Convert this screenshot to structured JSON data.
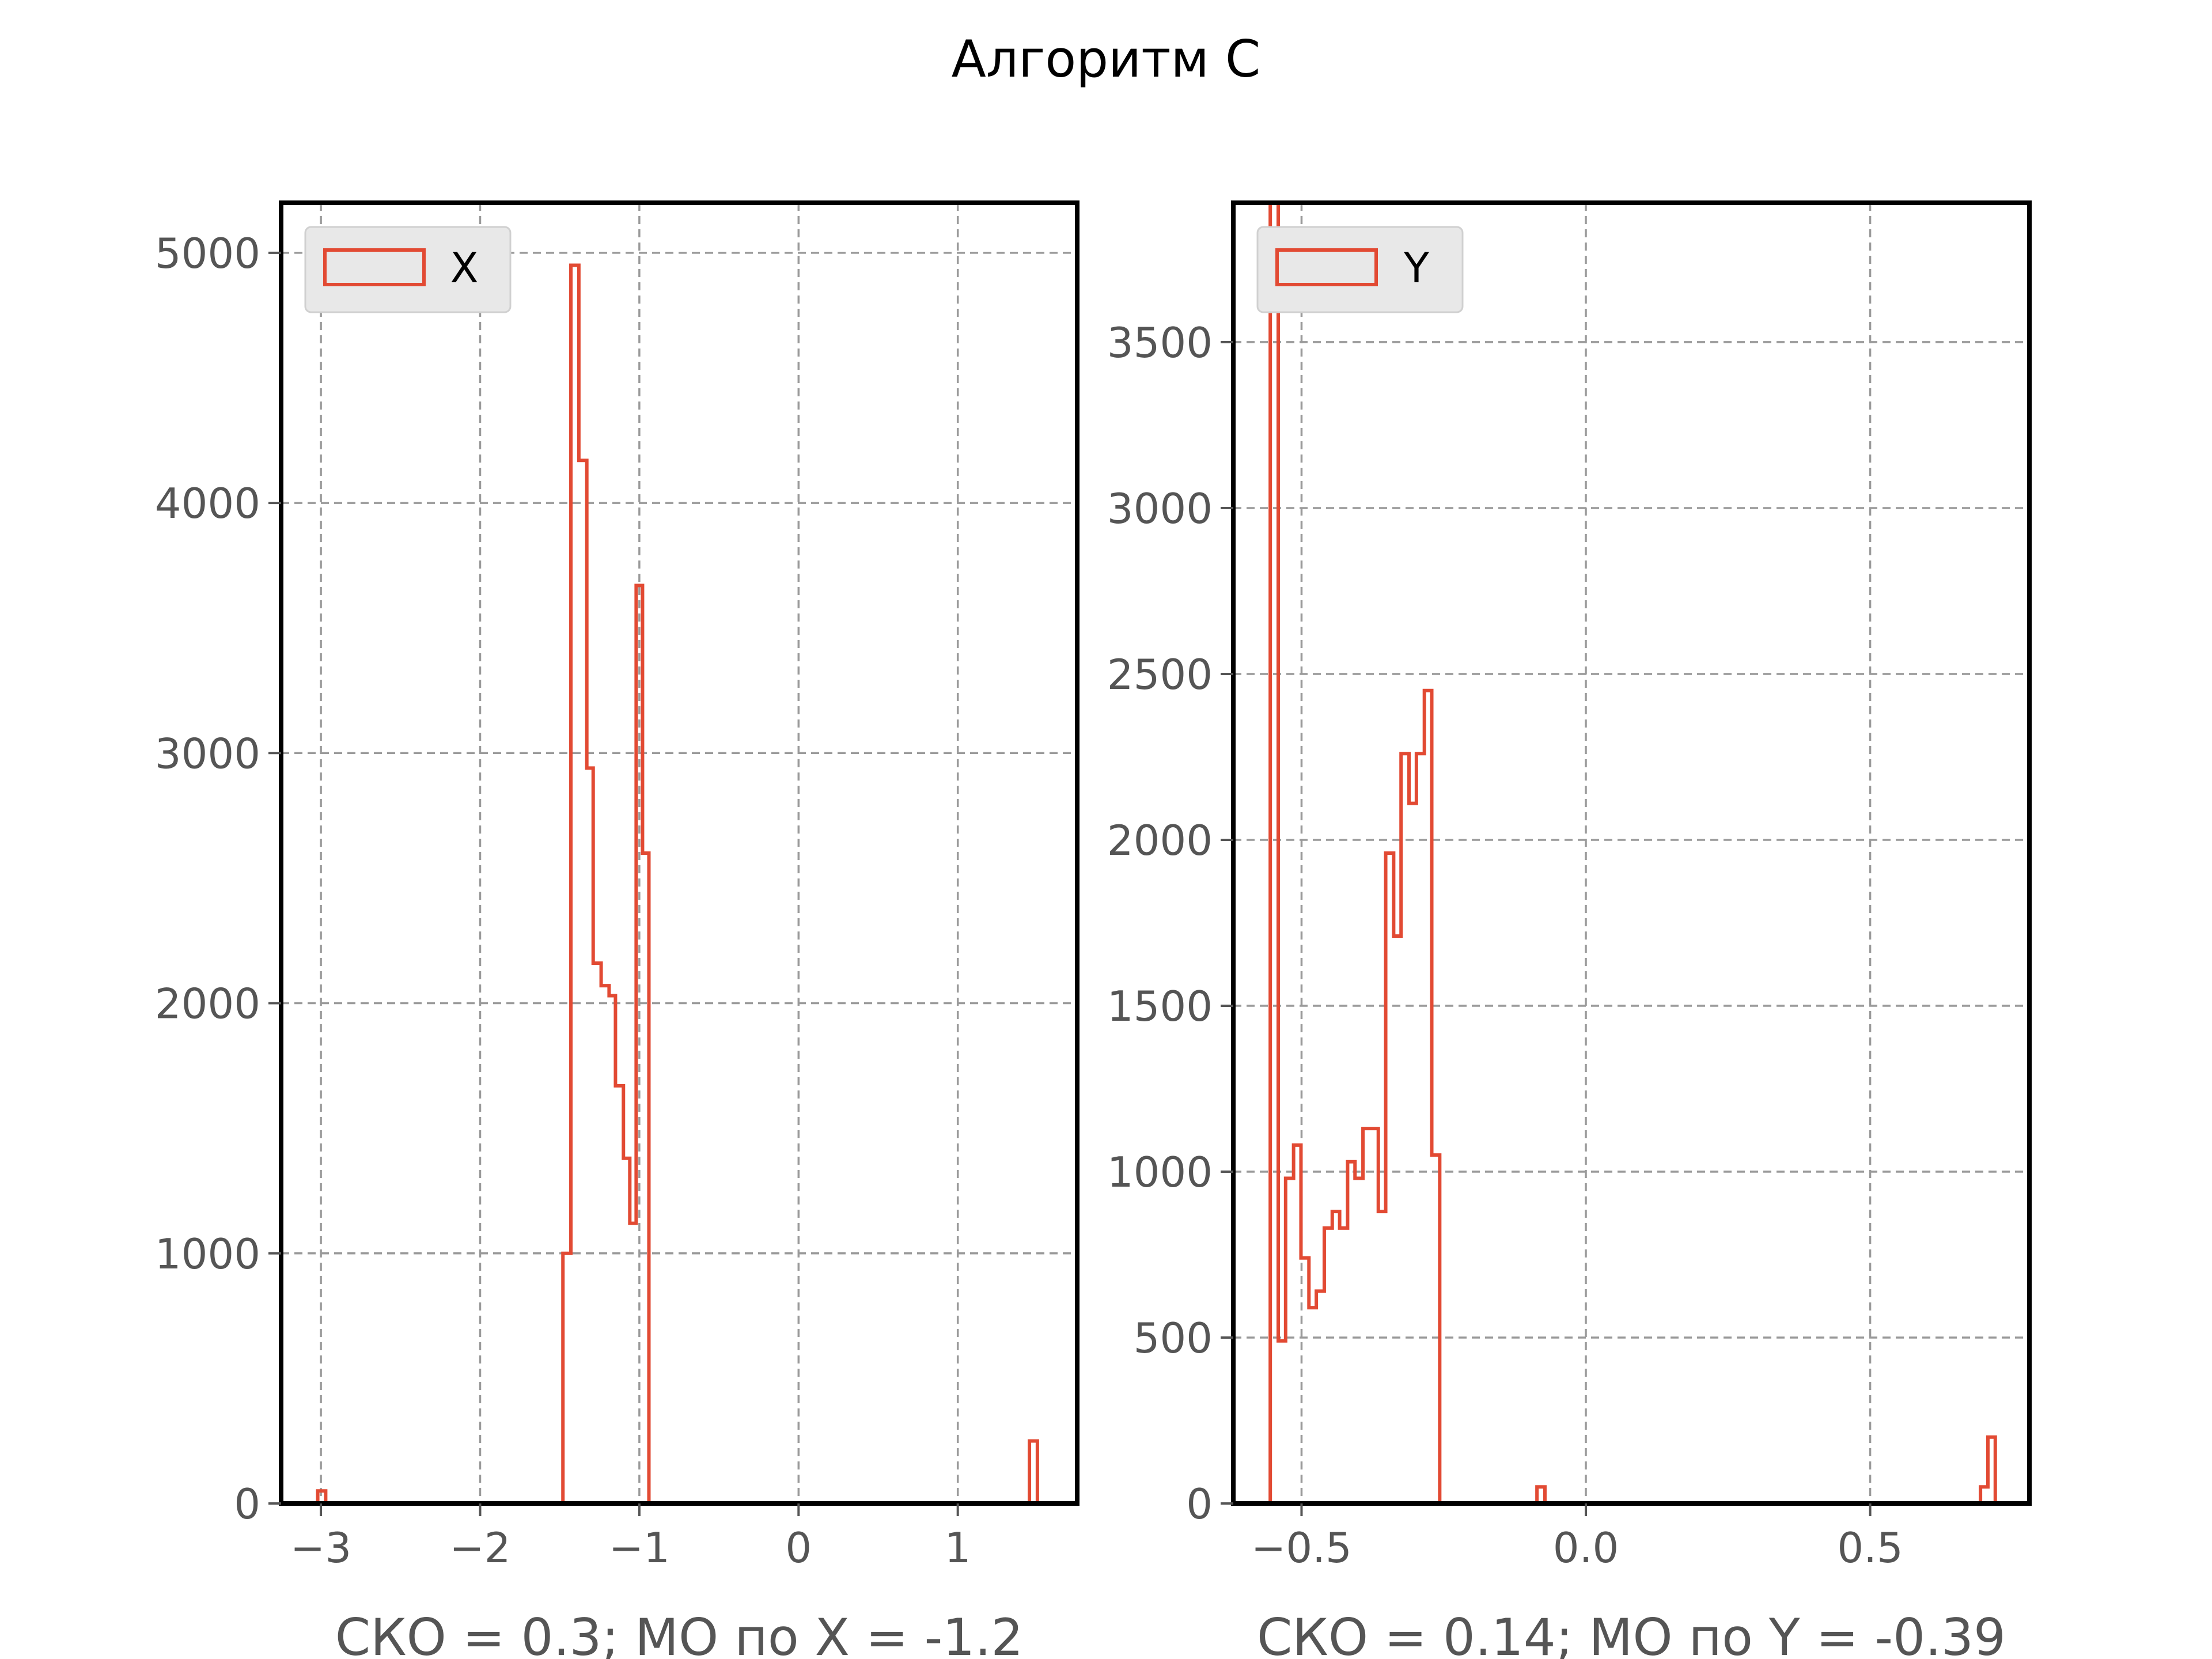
{
  "figure": {
    "title": "Алгоритм С",
    "colors": {
      "series": "#e24a33",
      "frame": "#000000",
      "grid": "#9a9a9a",
      "legend_bg": "#e8e8e8"
    }
  },
  "chart_data": [
    {
      "type": "histogram",
      "title": "",
      "xlabel": "СКО = 0.3; МО по X = -1.2",
      "ylabel": "",
      "xlim": [
        -3.25,
        1.75
      ],
      "ylim": [
        0,
        5200
      ],
      "xticks": [
        -3,
        -2,
        -1,
        0,
        1
      ],
      "xtick_labels": [
        "−3",
        "−2",
        "−1",
        "0",
        "1"
      ],
      "yticks": [
        0,
        1000,
        2000,
        3000,
        4000,
        5000
      ],
      "ytick_labels": [
        "0",
        "1000",
        "2000",
        "3000",
        "4000",
        "5000"
      ],
      "grid": true,
      "legend": {
        "position": "upper-left",
        "entries": [
          "X"
        ]
      },
      "series": [
        {
          "name": "X",
          "histtype": "step",
          "bins": [
            {
              "x0": -3.02,
              "x1": -2.97,
              "count": 50
            },
            {
              "x0": -1.48,
              "x1": -1.43,
              "count": 1000
            },
            {
              "x0": -1.43,
              "x1": -1.38,
              "count": 4950
            },
            {
              "x0": -1.38,
              "x1": -1.33,
              "count": 4170
            },
            {
              "x0": -1.33,
              "x1": -1.29,
              "count": 2940
            },
            {
              "x0": -1.29,
              "x1": -1.24,
              "count": 2160
            },
            {
              "x0": -1.24,
              "x1": -1.19,
              "count": 2070
            },
            {
              "x0": -1.19,
              "x1": -1.15,
              "count": 2030
            },
            {
              "x0": -1.15,
              "x1": -1.1,
              "count": 1670
            },
            {
              "x0": -1.1,
              "x1": -1.06,
              "count": 1380
            },
            {
              "x0": -1.06,
              "x1": -1.02,
              "count": 1120
            },
            {
              "x0": -1.02,
              "x1": -0.98,
              "count": 3670
            },
            {
              "x0": -0.98,
              "x1": -0.94,
              "count": 2600
            },
            {
              "x0": 1.45,
              "x1": 1.5,
              "count": 250
            }
          ]
        }
      ]
    },
    {
      "type": "histogram",
      "title": "",
      "xlabel": "СКО = 0.14; МО по Y = -0.39",
      "ylabel": "",
      "xlim": [
        -0.62,
        0.78
      ],
      "ylim": [
        0,
        3920
      ],
      "xticks": [
        -0.5,
        0.0,
        0.5
      ],
      "xtick_labels": [
        "−0.5",
        "0.0",
        "0.5"
      ],
      "yticks": [
        0,
        500,
        1000,
        1500,
        2000,
        2500,
        3000,
        3500
      ],
      "ytick_labels": [
        "0",
        "500",
        "1000",
        "1500",
        "2000",
        "2500",
        "3000",
        "3500"
      ],
      "grid": true,
      "legend": {
        "position": "upper-left",
        "entries": [
          "Y"
        ]
      },
      "series": [
        {
          "name": "Y",
          "histtype": "step",
          "bins": [
            {
              "x0": -0.555,
              "x1": -0.541,
              "count": 3920
            },
            {
              "x0": -0.541,
              "x1": -0.528,
              "count": 490
            },
            {
              "x0": -0.528,
              "x1": -0.514,
              "count": 980
            },
            {
              "x0": -0.514,
              "x1": -0.501,
              "count": 1080
            },
            {
              "x0": -0.501,
              "x1": -0.487,
              "count": 740
            },
            {
              "x0": -0.487,
              "x1": -0.474,
              "count": 590
            },
            {
              "x0": -0.474,
              "x1": -0.46,
              "count": 640
            },
            {
              "x0": -0.46,
              "x1": -0.446,
              "count": 830
            },
            {
              "x0": -0.446,
              "x1": -0.433,
              "count": 880
            },
            {
              "x0": -0.433,
              "x1": -0.419,
              "count": 830
            },
            {
              "x0": -0.419,
              "x1": -0.406,
              "count": 1030
            },
            {
              "x0": -0.406,
              "x1": -0.392,
              "count": 980
            },
            {
              "x0": -0.392,
              "x1": -0.379,
              "count": 1130
            },
            {
              "x0": -0.379,
              "x1": -0.365,
              "count": 1130
            },
            {
              "x0": -0.365,
              "x1": -0.352,
              "count": 880
            },
            {
              "x0": -0.352,
              "x1": -0.338,
              "count": 1960
            },
            {
              "x0": -0.338,
              "x1": -0.325,
              "count": 1710
            },
            {
              "x0": -0.325,
              "x1": -0.311,
              "count": 2260
            },
            {
              "x0": -0.311,
              "x1": -0.298,
              "count": 2110
            },
            {
              "x0": -0.298,
              "x1": -0.284,
              "count": 2260
            },
            {
              "x0": -0.284,
              "x1": -0.271,
              "count": 2450
            },
            {
              "x0": -0.271,
              "x1": -0.257,
              "count": 1050
            },
            {
              "x0": -0.086,
              "x1": -0.072,
              "count": 50
            },
            {
              "x0": 0.694,
              "x1": 0.707,
              "count": 50
            },
            {
              "x0": 0.707,
              "x1": 0.72,
              "count": 200
            }
          ]
        }
      ]
    }
  ]
}
